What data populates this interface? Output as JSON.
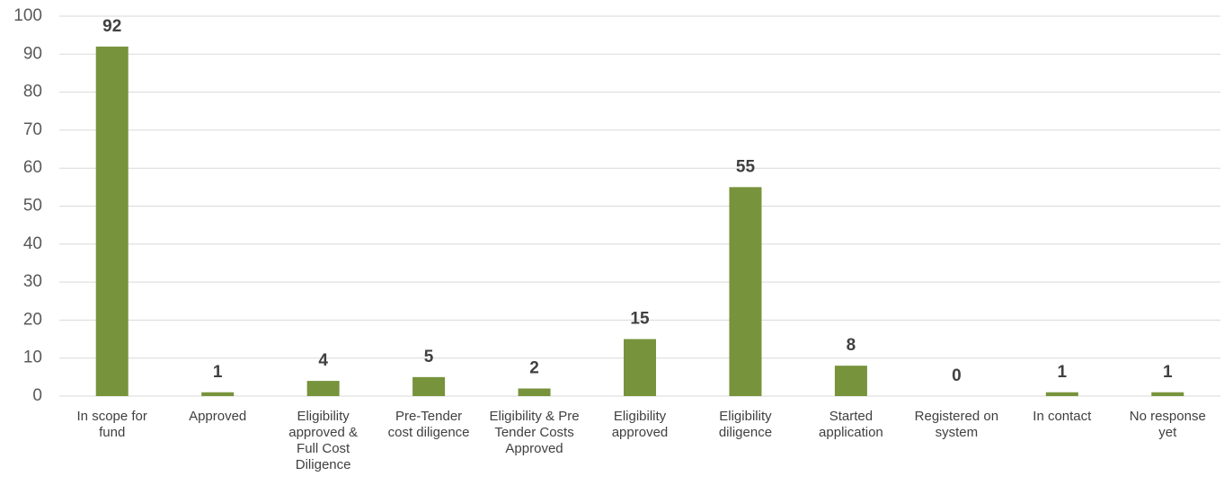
{
  "chart_data": {
    "type": "bar",
    "categories": [
      "In scope for fund",
      "Approved",
      "Eligibility approved & Full Cost Diligence",
      "Pre-Tender cost diligence",
      "Eligibility & Pre Tender Costs Approved",
      "Eligibility approved",
      "Eligibility diligence",
      "Started application",
      "Registered on system",
      "In contact",
      "No response yet"
    ],
    "values": [
      92,
      1,
      4,
      5,
      2,
      15,
      55,
      8,
      0,
      1,
      1
    ],
    "color": "#77933c",
    "ylim": [
      0,
      100
    ],
    "yticks": [
      0,
      10,
      20,
      30,
      40,
      50,
      60,
      70,
      80,
      90,
      100
    ],
    "grid": true
  }
}
